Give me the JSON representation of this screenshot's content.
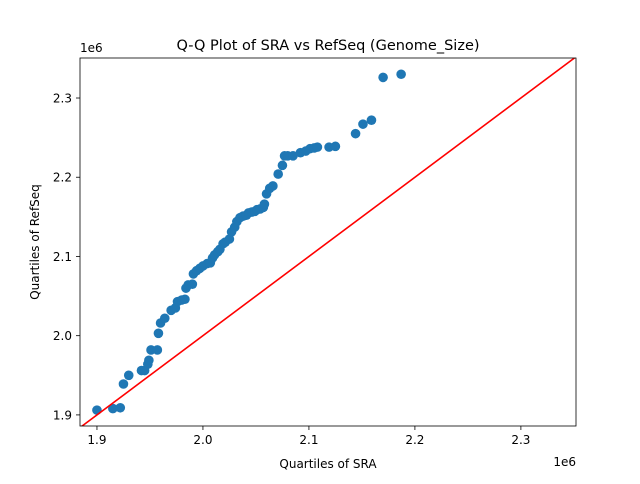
{
  "chart_data": {
    "type": "scatter",
    "title": "Q-Q Plot of SRA vs RefSeq (Genome_Size)",
    "xlabel": "Quartiles of SRA",
    "ylabel": "Quartiles of RefSeq",
    "x_offset_label": "1e6",
    "y_offset_label": "1e6",
    "xlim": [
      1.884,
      2.352
    ],
    "ylim": [
      1.886,
      2.3505
    ],
    "xticks": [
      "1.9",
      "2.0",
      "2.1",
      "2.2",
      "2.3"
    ],
    "yticks": [
      "1.9",
      "2.0",
      "2.1",
      "2.2",
      "2.3"
    ],
    "grid": false,
    "point_color": "#1f77b4",
    "reference_line": {
      "type": "y=x",
      "color": "#ff0000"
    },
    "x": [
      1.9,
      1.915,
      1.922,
      1.925,
      1.93,
      1.942,
      1.945,
      1.948,
      1.949,
      1.951,
      1.957,
      1.958,
      1.96,
      1.964,
      1.97,
      1.974,
      1.976,
      1.98,
      1.983,
      1.984,
      1.986,
      1.99,
      1.991,
      1.994,
      1.997,
      2.0,
      2.004,
      2.007,
      2.009,
      2.011,
      2.014,
      2.016,
      2.019,
      2.021,
      2.025,
      2.027,
      2.03,
      2.032,
      2.035,
      2.038,
      2.041,
      2.043,
      2.046,
      2.049,
      2.051,
      2.054,
      2.057,
      2.058,
      2.06,
      2.063,
      2.066,
      2.071,
      2.075,
      2.077,
      2.08,
      2.085,
      2.092,
      2.097,
      2.101,
      2.105,
      2.108,
      2.119,
      2.125,
      2.144,
      2.151,
      2.159,
      2.17,
      2.187
    ],
    "y": [
      1.906,
      1.908,
      1.909,
      1.939,
      1.95,
      1.956,
      1.956,
      1.964,
      1.969,
      1.982,
      1.982,
      2.003,
      2.016,
      2.022,
      2.032,
      2.035,
      2.043,
      2.045,
      2.046,
      2.06,
      2.064,
      2.065,
      2.078,
      2.082,
      2.085,
      2.088,
      2.091,
      2.092,
      2.098,
      2.102,
      2.106,
      2.109,
      2.116,
      2.118,
      2.122,
      2.131,
      2.137,
      2.144,
      2.149,
      2.151,
      2.152,
      2.155,
      2.156,
      2.157,
      2.159,
      2.16,
      2.162,
      2.166,
      2.179,
      2.186,
      2.189,
      2.204,
      2.215,
      2.227,
      2.227,
      2.227,
      2.231,
      2.233,
      2.236,
      2.237,
      2.238,
      2.238,
      2.239,
      2.255,
      2.267,
      2.272,
      2.326,
      2.33
    ]
  }
}
